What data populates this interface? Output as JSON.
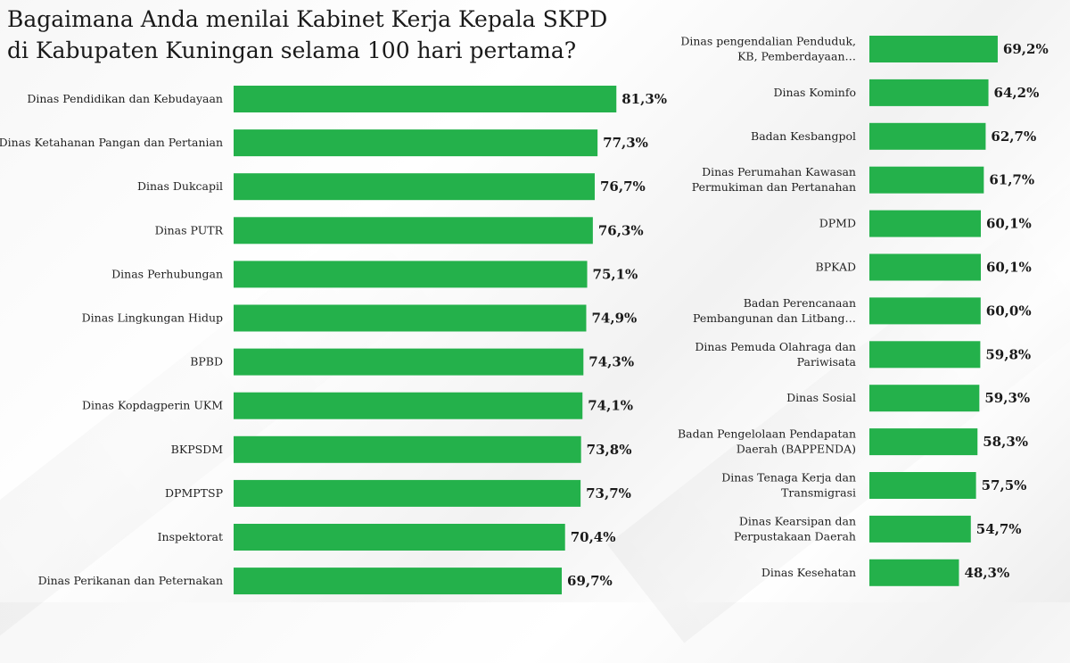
{
  "chart_data": {
    "type": "bar",
    "orientation": "horizontal",
    "title_lines": [
      "Bagaimana Anda menilai Kabinet Kerja Kepala SKPD",
      "di Kabupaten Kuningan selama 100 hari pertama?"
    ],
    "bar_color": "#24b14b",
    "panels": [
      {
        "categories": [
          [
            "Dinas Pendidikan dan Kebudayaan"
          ],
          [
            "Dinas Ketahanan Pangan dan Pertanian"
          ],
          [
            "Dinas Dukcapil"
          ],
          [
            "Dinas PUTR"
          ],
          [
            "Dinas Perhubungan"
          ],
          [
            "Dinas Lingkungan Hidup"
          ],
          [
            "BPBD"
          ],
          [
            "Dinas Kopdagperin UKM"
          ],
          [
            "BKPSDM"
          ],
          [
            "DPMPTSP"
          ],
          [
            "Inspektorat"
          ],
          [
            "Dinas Perikanan dan Peternakan"
          ]
        ],
        "values": [
          81.3,
          77.3,
          76.7,
          76.3,
          75.1,
          74.9,
          74.3,
          74.1,
          73.8,
          73.7,
          70.4,
          69.7
        ],
        "value_labels": [
          "81,3%",
          "77,3%",
          "76,7%",
          "76,3%",
          "75,1%",
          "74,9%",
          "74,3%",
          "74,1%",
          "73,8%",
          "73,7%",
          "70,4%",
          "69,7%"
        ]
      },
      {
        "categories": [
          [
            "Dinas pengendalian Penduduk,",
            "KB, Pemberdayaan…"
          ],
          [
            "Dinas Kominfo"
          ],
          [
            "Badan Kesbangpol"
          ],
          [
            "Dinas Perumahan Kawasan",
            "Permukiman dan Pertanahan"
          ],
          [
            "DPMD"
          ],
          [
            "BPKAD"
          ],
          [
            "Badan Perencanaan",
            "Pembangunan dan Litbang…"
          ],
          [
            "Dinas Pemuda Olahraga dan",
            "Pariwisata"
          ],
          [
            "Dinas Sosial"
          ],
          [
            "Badan Pengelolaan Pendapatan",
            "Daerah (BAPPENDA)"
          ],
          [
            "Dinas Tenaga Kerja dan",
            "Transmigrasi"
          ],
          [
            "Dinas Kearsipan dan",
            "Perpustakaan Daerah"
          ],
          [
            "Dinas Kesehatan"
          ]
        ],
        "values": [
          69.2,
          64.2,
          62.7,
          61.7,
          60.1,
          60.1,
          60.0,
          59.8,
          59.3,
          58.3,
          57.5,
          54.7,
          48.3
        ],
        "value_labels": [
          "69,2%",
          "64,2%",
          "62,7%",
          "61,7%",
          "60,1%",
          "60,1%",
          "60,0%",
          "59,8%",
          "59,3%",
          "58,3%",
          "57,5%",
          "54,7%",
          "48,3%"
        ]
      }
    ]
  }
}
